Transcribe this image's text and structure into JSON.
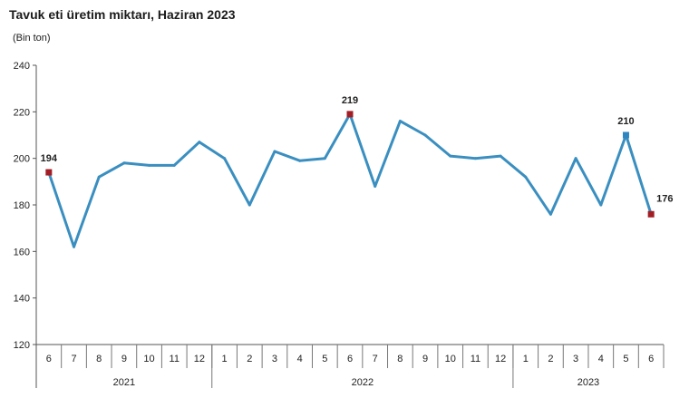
{
  "chart_data": {
    "type": "line",
    "title": "Tavuk eti üretim miktarı, Haziran 2023",
    "ylabel": "(Bin ton)",
    "ylim": [
      120,
      240
    ],
    "yticks": [
      120,
      140,
      160,
      180,
      200,
      220,
      240
    ],
    "grid": false,
    "line_color": "#3a8fc0",
    "marker_red": "#a31d24",
    "marker_blue": "#2e86c1",
    "x": [
      "6",
      "7",
      "8",
      "9",
      "10",
      "11",
      "12",
      "1",
      "2",
      "3",
      "4",
      "5",
      "6",
      "7",
      "8",
      "9",
      "10",
      "11",
      "12",
      "1",
      "2",
      "3",
      "4",
      "5",
      "6"
    ],
    "years": [
      {
        "label": "2021",
        "start": 0,
        "end": 6
      },
      {
        "label": "2022",
        "start": 7,
        "end": 18
      },
      {
        "label": "2023",
        "start": 19,
        "end": 24
      }
    ],
    "series": [
      {
        "values": [
          194,
          162,
          192,
          198,
          197,
          197,
          207,
          200,
          180,
          203,
          199,
          200,
          219,
          188,
          216,
          210,
          201,
          200,
          201,
          192,
          176,
          200,
          180,
          210,
          176
        ],
        "highlights": [
          {
            "index": 0,
            "label": "194",
            "color": "red"
          },
          {
            "index": 12,
            "label": "219",
            "color": "red"
          },
          {
            "index": 23,
            "label": "210",
            "color": "blue"
          },
          {
            "index": 24,
            "label": "176",
            "color": "red"
          }
        ]
      }
    ]
  }
}
